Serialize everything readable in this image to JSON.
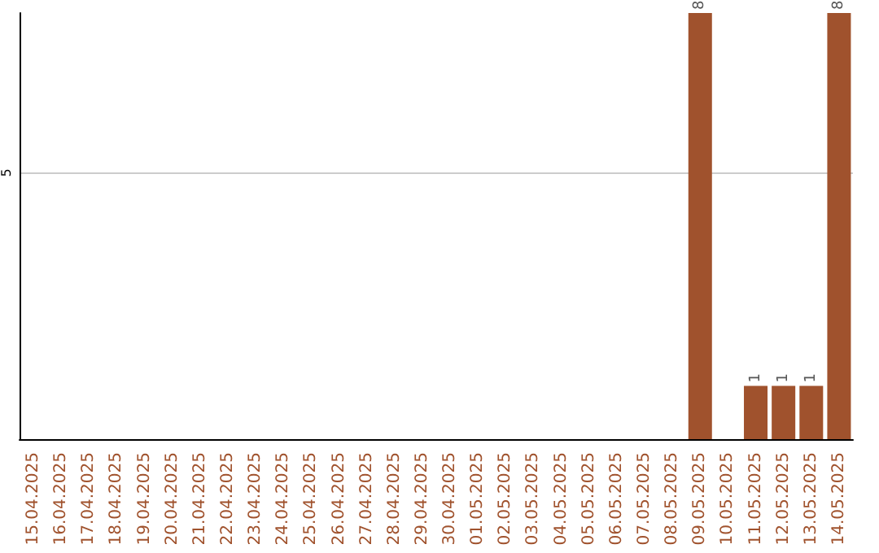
{
  "chart_data": {
    "type": "bar",
    "categories": [
      "15.04.2025",
      "16.04.2025",
      "17.04.2025",
      "18.04.2025",
      "19.04.2025",
      "20.04.2025",
      "21.04.2025",
      "22.04.2025",
      "23.04.2025",
      "24.04.2025",
      "25.04.2025",
      "26.04.2025",
      "27.04.2025",
      "28.04.2025",
      "29.04.2025",
      "30.04.2025",
      "01.05.2025",
      "02.05.2025",
      "03.05.2025",
      "04.05.2025",
      "05.05.2025",
      "06.05.2025",
      "07.05.2025",
      "08.05.2025",
      "09.05.2025",
      "10.05.2025",
      "11.05.2025",
      "12.05.2025",
      "13.05.2025",
      "14.05.2025"
    ],
    "values": [
      null,
      null,
      null,
      null,
      null,
      null,
      null,
      null,
      null,
      null,
      null,
      null,
      null,
      null,
      null,
      null,
      null,
      null,
      null,
      null,
      null,
      null,
      null,
      null,
      8,
      null,
      1,
      1,
      1,
      8
    ],
    "color": "#a0522d",
    "ylim": [
      0,
      8
    ],
    "yticks": [
      5
    ],
    "grid": "y",
    "data_labels": true
  }
}
